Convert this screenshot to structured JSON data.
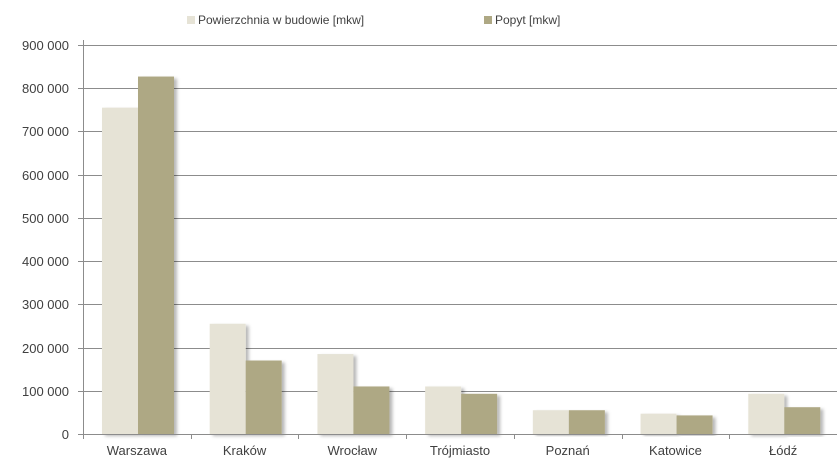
{
  "chart_data": {
    "type": "bar",
    "categories": [
      "Warszawa",
      "Kraków",
      "Wrocław",
      "Trójmiasto",
      "Poznań",
      "Katowice",
      "Łódź"
    ],
    "series": [
      {
        "name": "Powierzchnia w budowie [mkw]",
        "color": "#e6e3d6",
        "values": [
          755000,
          255000,
          185000,
          110000,
          55000,
          47000,
          93000
        ]
      },
      {
        "name": "Popyt [mkw]",
        "color": "#aea884",
        "values": [
          827000,
          170000,
          110000,
          93000,
          55000,
          43000,
          62000
        ]
      }
    ],
    "ylim": [
      0,
      900000
    ],
    "yticks": [
      0,
      100000,
      200000,
      300000,
      400000,
      500000,
      600000,
      700000,
      800000,
      900000
    ],
    "ytick_labels": [
      "0",
      "100 000",
      "200 000",
      "300 000",
      "400 000",
      "500 000",
      "600 000",
      "700 000",
      "800 000",
      "900 000"
    ],
    "grid": true,
    "legend_position": "top-center"
  }
}
